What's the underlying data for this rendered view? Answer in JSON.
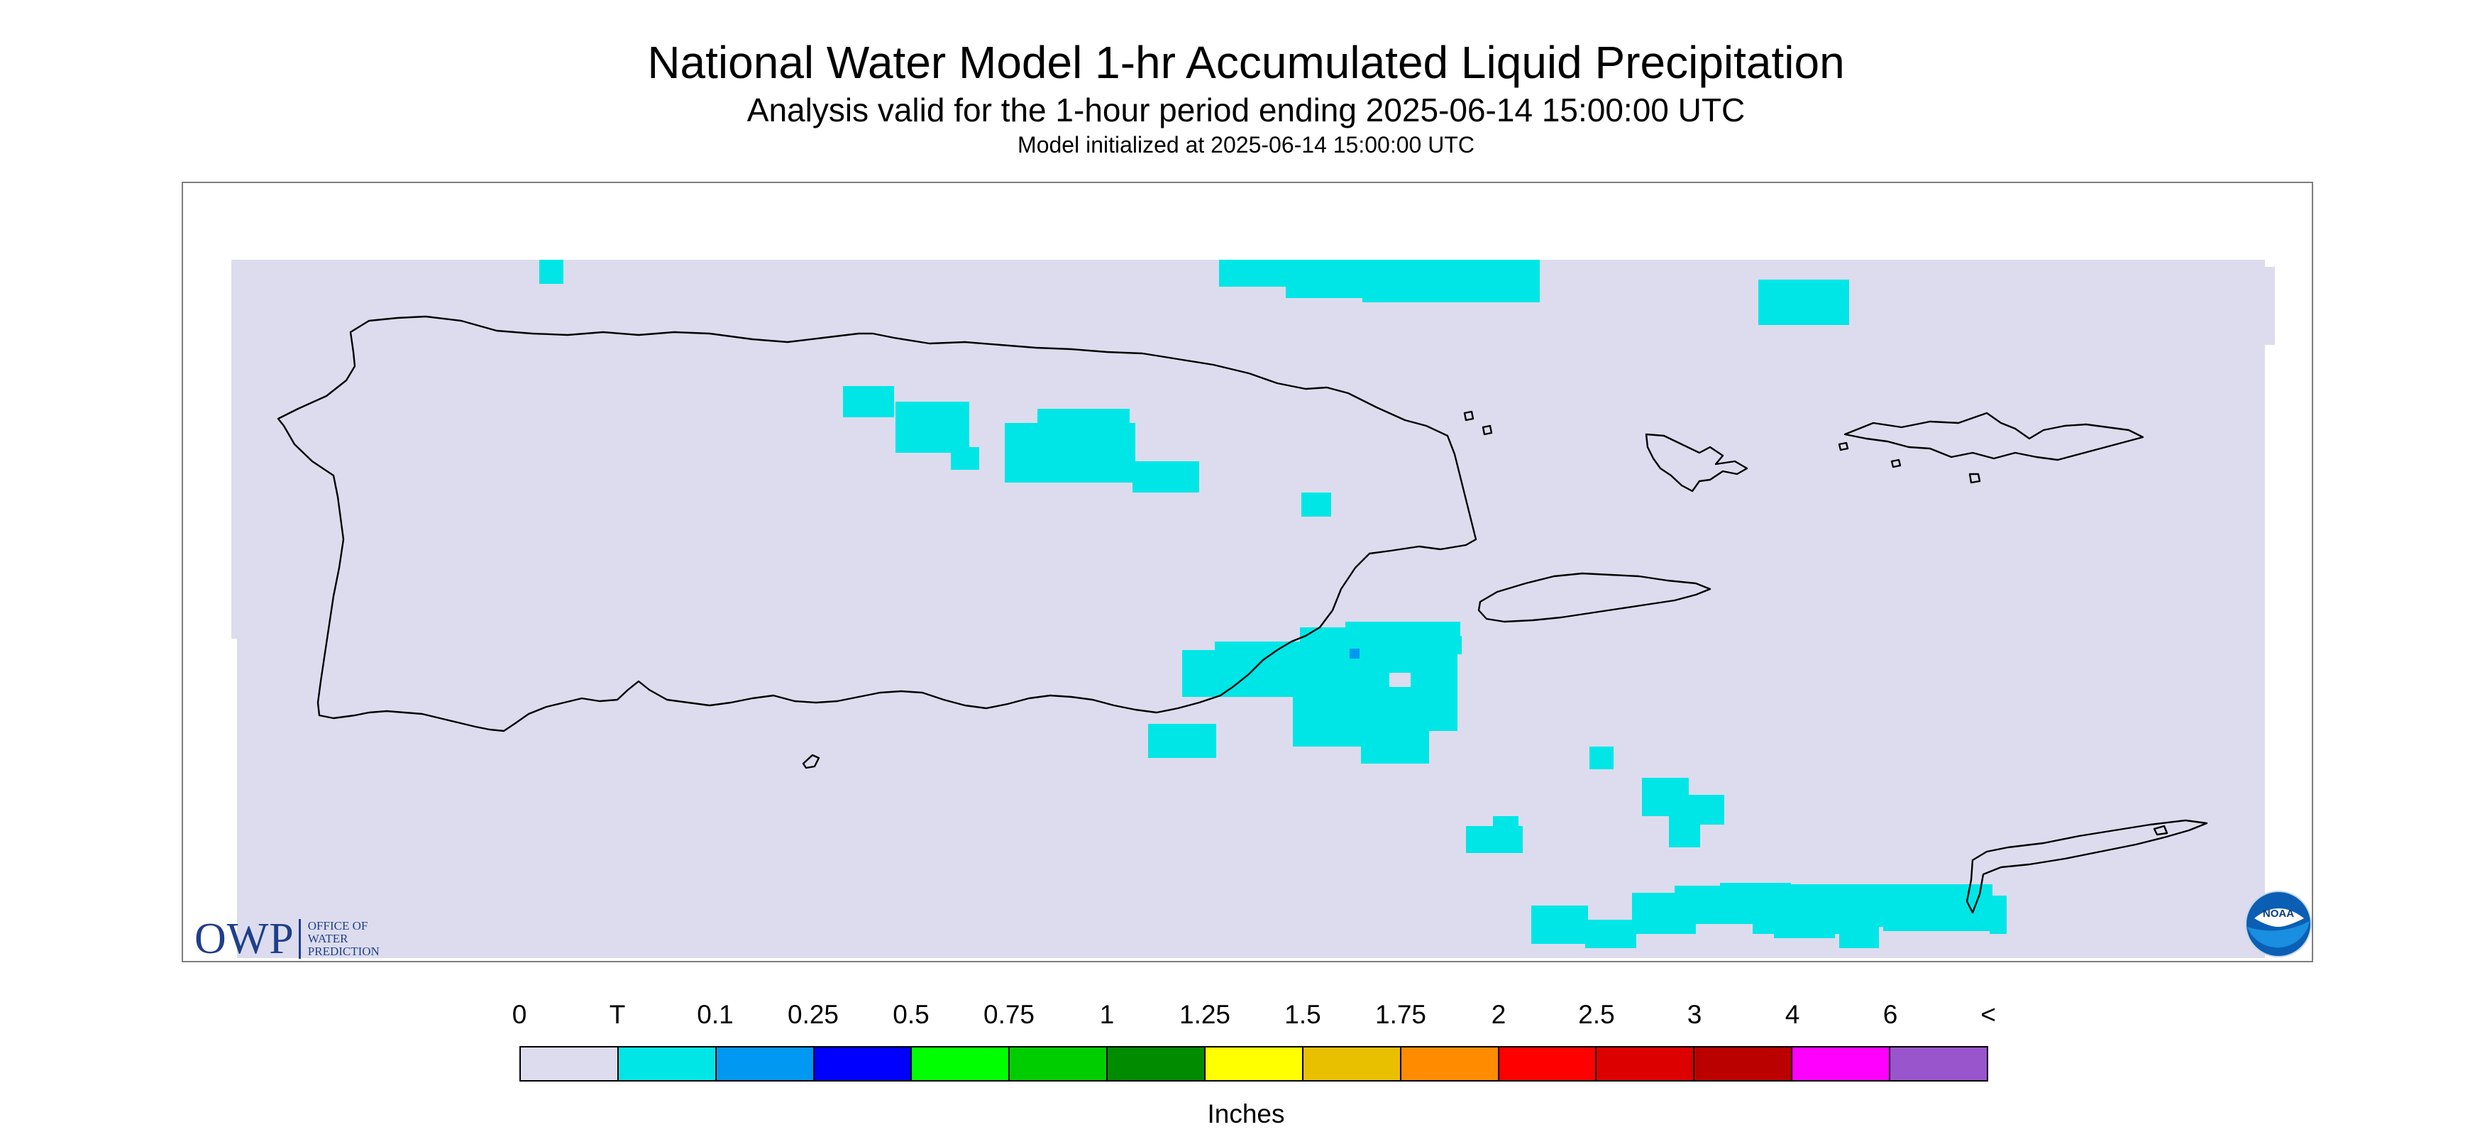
{
  "title": "National Water Model 1-hr Accumulated Liquid Precipitation",
  "subtitle": "Analysis valid for the 1-hour period ending 2025-06-14 15:00:00 UTC",
  "init_line": "Model initialized at 2025-06-14 15:00:00 UTC",
  "map": {
    "region": "Puerto Rico and U.S. Virgin Islands",
    "background_color": "#dcdcee",
    "coastline_color": "#000000",
    "precip_colors": {
      "trace": "#00e6e6",
      "light": "#0098f0"
    }
  },
  "legend": {
    "labels": [
      "0",
      "T",
      "0.1",
      "0.25",
      "0.5",
      "0.75",
      "1",
      "1.25",
      "1.5",
      "1.75",
      "2",
      "2.5",
      "3",
      "4",
      "6",
      "<"
    ],
    "colors": [
      "#dcdcee",
      "#00e6e6",
      "#0098f0",
      "#0000ff",
      "#00ff00",
      "#00cd00",
      "#008b00",
      "#ffff00",
      "#e8c000",
      "#ff8c00",
      "#ff0000",
      "#dd0000",
      "#bb0000",
      "#ff00ff",
      "#9955cc"
    ],
    "units": "Inches"
  },
  "owp_logo": {
    "big": "OWP",
    "line1": "OFFICE OF",
    "line2": "WATER",
    "line3": "PREDICTION"
  },
  "noaa_logo": {
    "text": "NOAA"
  }
}
